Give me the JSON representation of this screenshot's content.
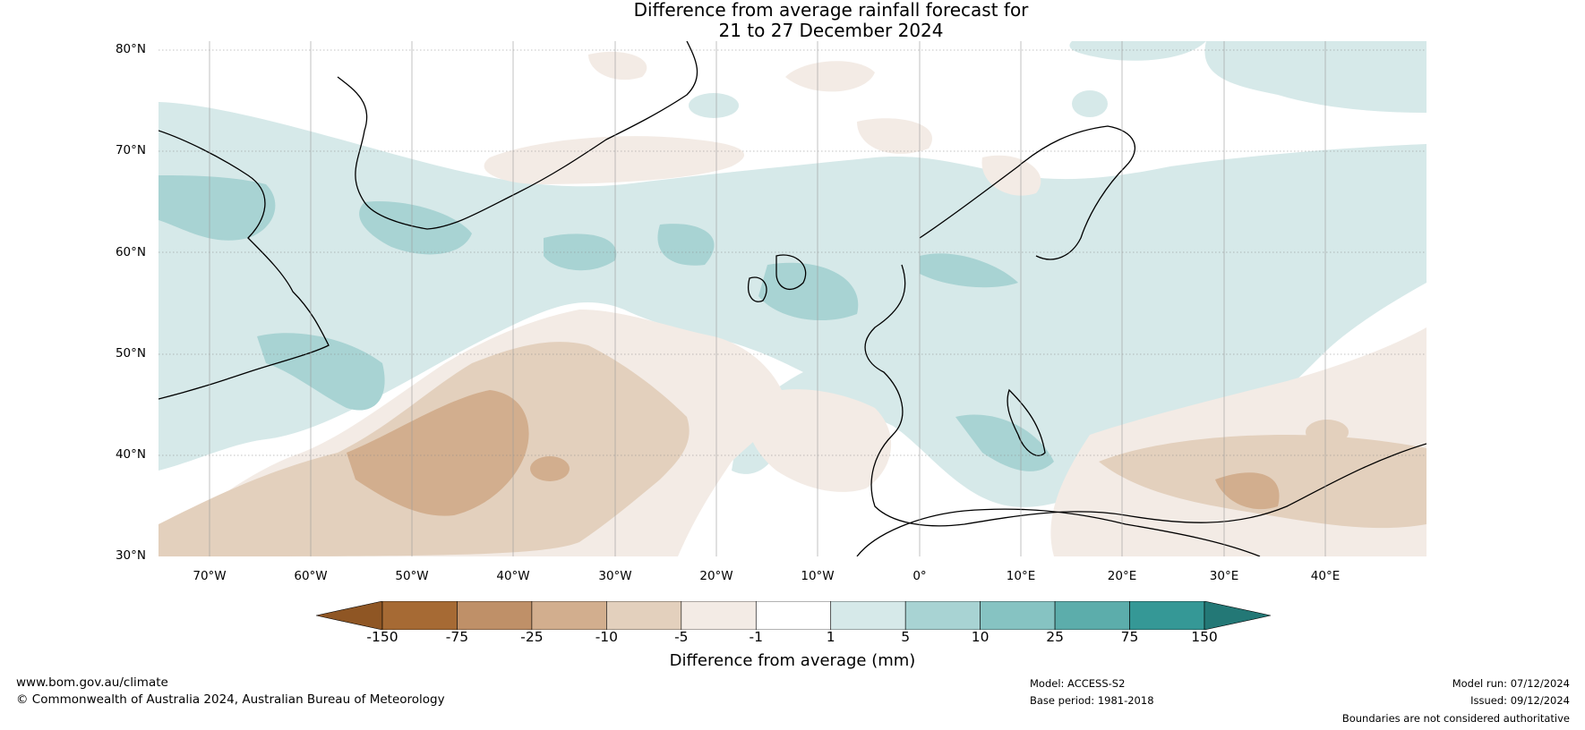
{
  "title_line1": "Difference from average rainfall forecast for",
  "title_line2": "21 to 27 December 2024",
  "lat_labels": [
    "80°N",
    "70°N",
    "60°N",
    "50°N",
    "40°N",
    "30°N"
  ],
  "lon_labels": [
    "70°W",
    "60°W",
    "50°W",
    "40°W",
    "30°W",
    "20°W",
    "10°W",
    "0°",
    "10°E",
    "20°E",
    "30°E",
    "40°E"
  ],
  "colorbar": {
    "label": "Difference from average (mm)",
    "ticks": [
      "-150",
      "-75",
      "-25",
      "-10",
      "-5",
      "-1",
      "1",
      "5",
      "10",
      "25",
      "75",
      "150"
    ],
    "colors": [
      "#a66a34",
      "#bf9068",
      "#d2ae8e",
      "#e3d0bd",
      "#f3ebe5",
      "#ffffff",
      "#d6e9e9",
      "#a8d3d3",
      "#86c3c2",
      "#5cadab",
      "#359896"
    ],
    "under_color": "#8f5624",
    "over_color": "#237876"
  },
  "footer": {
    "website": "www.bom.gov.au/climate",
    "copyright": "© Commonwealth of Australia 2024, Australian Bureau of Meteorology",
    "model": "Model: ACCESS-S2",
    "base_period": "Base period: 1981-2018",
    "model_run": "Model run: 07/12/2024",
    "issued": "Issued: 09/12/2024",
    "disclaimer": "Boundaries are not considered authoritative"
  }
}
